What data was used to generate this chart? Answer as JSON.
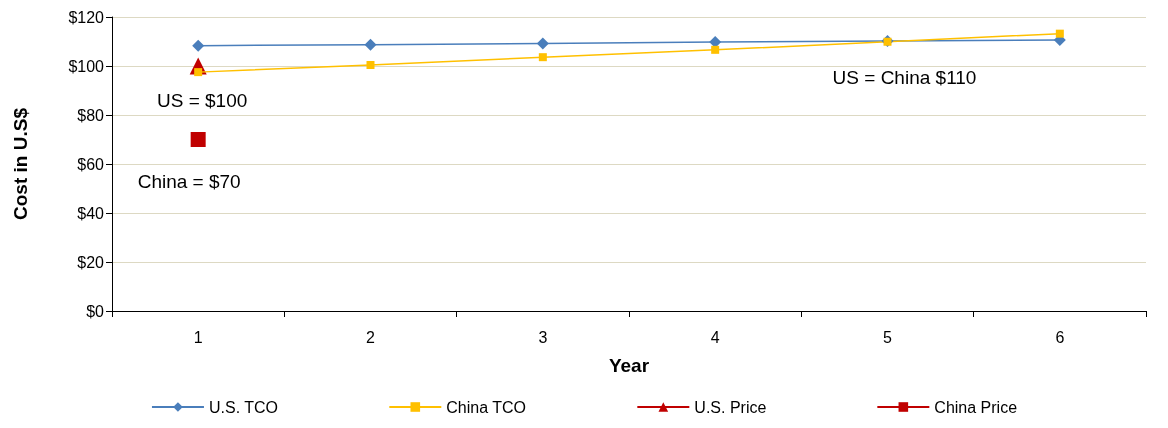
{
  "chart_data": {
    "type": "line",
    "xlabel": "Year",
    "ylabel": "Cost in U.S$",
    "categories": [
      "1",
      "2",
      "3",
      "4",
      "5",
      "6"
    ],
    "series": [
      {
        "name": "U.S. TCO",
        "color": "#4a7ebb",
        "marker": "diamond",
        "values": [
          108.3,
          108.7,
          109.2,
          109.8,
          110.2,
          110.6
        ]
      },
      {
        "name": "China TCO",
        "color": "#ffc000",
        "marker": "square",
        "values": [
          97.5,
          100.4,
          103.6,
          106.6,
          109.9,
          113.2
        ]
      },
      {
        "name": "U.S. Price",
        "color": "#c00000",
        "marker": "triangle",
        "values": [
          100,
          null,
          null,
          null,
          null,
          null
        ]
      },
      {
        "name": "China Price",
        "color": "#c00000",
        "marker": "square",
        "values": [
          70,
          null,
          null,
          null,
          null,
          null
        ]
      }
    ],
    "ylim": [
      0,
      120
    ],
    "yticks": [
      {
        "value": 0,
        "label": "$0"
      },
      {
        "value": 20,
        "label": "$20"
      },
      {
        "value": 40,
        "label": "$40"
      },
      {
        "value": 60,
        "label": "$60"
      },
      {
        "value": 80,
        "label": "$80"
      },
      {
        "value": 100,
        "label": "$100"
      },
      {
        "value": 120,
        "label": "$120"
      }
    ],
    "grid": "y",
    "legend": "bottom",
    "annotations": [
      {
        "text": "US = $100",
        "x": "1",
        "y": 100
      },
      {
        "text": "China = $70",
        "x": "1",
        "y": 70
      },
      {
        "text": "US = China $110",
        "x": "5",
        "y": 110
      }
    ]
  }
}
